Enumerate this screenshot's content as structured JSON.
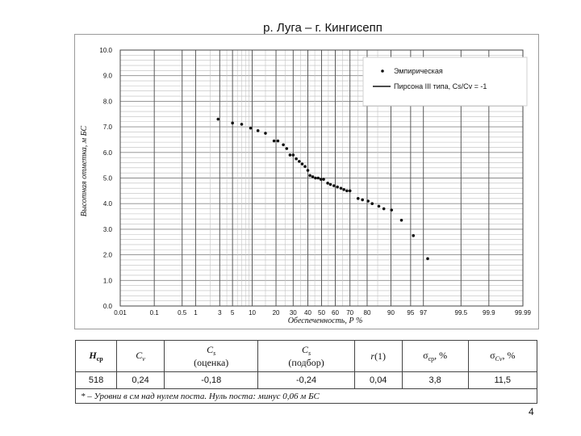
{
  "page": {
    "title": "р. Луга – г. Кингисепп",
    "number": "4"
  },
  "chart_data": {
    "type": "scatter",
    "x_scale": "probability",
    "xlabel": "Обеспеченность, Р %",
    "ylabel": "Высотная отметка, м БС",
    "xticks": [
      0.01,
      0.1,
      0.5,
      1,
      3,
      5,
      10,
      20,
      30,
      40,
      50,
      60,
      70,
      80,
      90,
      95,
      97,
      99.5,
      99.9,
      99.99
    ],
    "xtick_labels": [
      "0.01",
      "0.1",
      "0.5",
      "1",
      "3",
      "5",
      "10",
      "20",
      "30",
      "40",
      "50",
      "60",
      "70",
      "80",
      "90",
      "95",
      "97",
      "99.5",
      "99.9",
      "99.99"
    ],
    "xgrid_minor": [
      2,
      4,
      6,
      7,
      8,
      9,
      15,
      25,
      35,
      45,
      55,
      65,
      75,
      85
    ],
    "ylim": [
      0,
      10
    ],
    "yticks": [
      "0.0",
      "1.0",
      "2.0",
      "3.0",
      "4.0",
      "5.0",
      "6.0",
      "7.0",
      "8.0",
      "9.0",
      "10.0"
    ],
    "grid": true,
    "legend": {
      "position": "top-right",
      "entries": [
        "Эмпирическая",
        "Пирсона III типа, Cs/Cv = -1"
      ]
    },
    "series": [
      {
        "name": "Эмпирическая",
        "kind": "points",
        "points": [
          [
            2.8,
            7.3
          ],
          [
            5.0,
            7.15
          ],
          [
            7.0,
            7.1
          ],
          [
            9.5,
            6.95
          ],
          [
            12,
            6.85
          ],
          [
            15,
            6.75
          ],
          [
            19,
            6.45
          ],
          [
            21,
            6.45
          ],
          [
            24,
            6.3
          ],
          [
            26,
            6.15
          ],
          [
            28,
            5.9
          ],
          [
            30,
            5.9
          ],
          [
            32,
            5.75
          ],
          [
            34,
            5.65
          ],
          [
            36,
            5.55
          ],
          [
            38,
            5.45
          ],
          [
            40,
            5.3
          ],
          [
            41.5,
            5.1
          ],
          [
            43.5,
            5.05
          ],
          [
            45.5,
            5.0
          ],
          [
            47.5,
            5.0
          ],
          [
            49.5,
            4.95
          ],
          [
            51.5,
            4.95
          ],
          [
            54.5,
            4.8
          ],
          [
            56.5,
            4.75
          ],
          [
            59,
            4.7
          ],
          [
            61.5,
            4.65
          ],
          [
            64,
            4.6
          ],
          [
            66,
            4.55
          ],
          [
            68,
            4.5
          ],
          [
            70,
            4.5
          ],
          [
            75,
            4.2
          ],
          [
            77.5,
            4.15
          ],
          [
            80.5,
            4.1
          ],
          [
            82.5,
            4.0
          ],
          [
            85.5,
            3.9
          ],
          [
            87.5,
            3.8
          ],
          [
            90.2,
            3.75
          ],
          [
            93,
            3.35
          ],
          [
            95.5,
            2.75
          ],
          [
            97.5,
            1.85
          ]
        ]
      },
      {
        "name": "Пирсона III типа, Cs/Cv = -1",
        "kind": "line",
        "points": []
      }
    ]
  },
  "table": {
    "headers": [
      {
        "sym": "H",
        "sub": "ср",
        "sub_italic": false,
        "note": ""
      },
      {
        "sym": "C",
        "sub": "v",
        "sub_italic": true,
        "note": ""
      },
      {
        "sym": "C",
        "sub": "s",
        "sub_italic": true,
        "note": "(оценка)"
      },
      {
        "sym": "C",
        "sub": "s",
        "sub_italic": true,
        "note": "(подбор)"
      },
      {
        "sym": "r",
        "sub": "",
        "sub_italic": false,
        "note": "(1)"
      },
      {
        "sym": "σ",
        "sub": "ср",
        "sub_italic": false,
        "note": ", %"
      },
      {
        "sym": "σ",
        "sub": "Cv",
        "sub_italic": true,
        "note": ", %"
      }
    ],
    "values": [
      "518",
      "0,24",
      "-0,18",
      "-0,24",
      "0,04",
      "3,8",
      "11,5"
    ],
    "footnote": "* –  Уровни в см над нулем поста. Нуль поста: минус 0,06 м БС"
  }
}
